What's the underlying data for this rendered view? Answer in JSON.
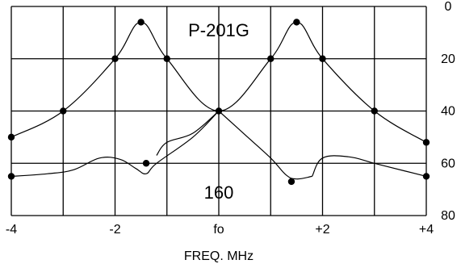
{
  "chart_data": {
    "type": "line",
    "title": "",
    "xlabel": "FREQ. MHz",
    "ylabel": "",
    "xlim": [
      -4,
      4
    ],
    "ylim": [
      0,
      80
    ],
    "y_inverted": true,
    "grid": true,
    "x_ticks": [
      {
        "value": -4,
        "label": "-4"
      },
      {
        "value": -2,
        "label": "-2"
      },
      {
        "value": 0,
        "label": "fo"
      },
      {
        "value": 2,
        "label": "+2"
      },
      {
        "value": 4,
        "label": "+4"
      }
    ],
    "y_ticks": [
      {
        "value": 0,
        "label": "0"
      },
      {
        "value": 20,
        "label": "20"
      },
      {
        "value": 40,
        "label": "40"
      },
      {
        "value": 60,
        "label": "60"
      },
      {
        "value": 80,
        "label": "80"
      }
    ],
    "annotations": [
      {
        "text": "P-201G",
        "x": 0,
        "y": 9
      },
      {
        "text": "160",
        "x": 0,
        "y": 71
      }
    ],
    "series": [
      {
        "markers": true,
        "points": [
          [
            -4,
            50
          ],
          [
            -3,
            40
          ],
          [
            -2,
            20
          ],
          [
            -1.5,
            6
          ],
          [
            -1,
            20
          ],
          [
            0,
            40
          ],
          [
            1,
            20
          ],
          [
            1.5,
            6
          ],
          [
            2,
            20
          ],
          [
            3,
            40
          ],
          [
            4,
            52
          ]
        ]
      },
      {
        "markers": false,
        "points": [
          [
            0,
            40
          ],
          [
            0.5,
            49
          ],
          [
            1,
            58
          ],
          [
            1.3,
            64.5
          ],
          [
            1.5,
            66
          ],
          [
            1.8,
            65
          ]
        ]
      },
      {
        "markers": false,
        "points": [
          [
            -1.2,
            57
          ],
          [
            -1,
            52
          ],
          [
            -0.5,
            48.5
          ],
          [
            0,
            40
          ]
        ]
      },
      {
        "markers": false,
        "points": [
          [
            -4,
            65
          ],
          [
            -3.3,
            64
          ],
          [
            -2.8,
            62.5
          ],
          [
            -2.3,
            58
          ],
          [
            -1.9,
            58.5
          ],
          [
            -1.6,
            62
          ],
          [
            -1.4,
            64
          ],
          [
            -1.2,
            60
          ],
          [
            -0.5,
            50
          ],
          [
            0,
            40
          ]
        ]
      },
      {
        "markers": false,
        "points": [
          [
            1.8,
            65
          ],
          [
            2,
            58
          ],
          [
            2.5,
            57.5
          ],
          [
            3,
            60
          ],
          [
            3.6,
            63
          ],
          [
            4,
            65
          ]
        ]
      },
      {
        "markers": true,
        "points": [
          [
            -4,
            65
          ],
          [
            -1.4,
            60
          ],
          [
            1.4,
            67
          ],
          [
            4,
            65
          ]
        ]
      }
    ]
  }
}
